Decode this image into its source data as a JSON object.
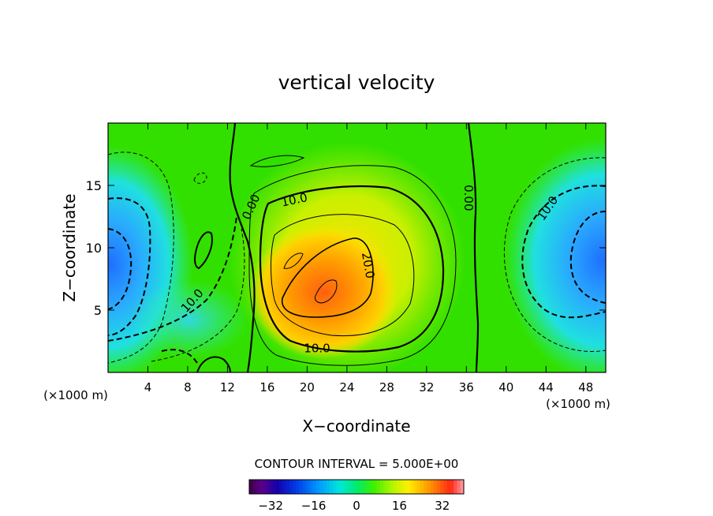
{
  "chart_data": {
    "type": "heatmap",
    "title": "vertical velocity",
    "xlabel": "X−coordinate",
    "ylabel": "Z−coordinate",
    "x_unit_label": "(×1000 m)",
    "y_unit_label": "(×1000 m)",
    "xlim": [
      0,
      50
    ],
    "ylim": [
      0,
      20
    ],
    "x_ticks": [
      4,
      8,
      12,
      16,
      20,
      24,
      28,
      32,
      36,
      40,
      44,
      48
    ],
    "x_tick_labels": [
      "4",
      "8",
      "12",
      "16",
      "20",
      "24",
      "28",
      "32",
      "36",
      "40",
      "44",
      "48"
    ],
    "y_ticks": [
      5,
      10,
      15
    ],
    "y_tick_labels": [
      "5",
      "10",
      "15"
    ],
    "contour_interval_text": "CONTOUR INTERVAL = 5.000E+00",
    "colorbar_range": [
      -40,
      40
    ],
    "colorbar_ticks": [
      -32,
      -16,
      0,
      16,
      32
    ],
    "colorbar_tick_labels": [
      "−32",
      "−16",
      "0",
      "16",
      "32"
    ],
    "contour_labels": [
      {
        "text": "0.00",
        "x": 14.3,
        "z": 13.3,
        "rotate": -65
      },
      {
        "text": "10.0",
        "x": 18.7,
        "z": 13.9,
        "rotate": -12
      },
      {
        "text": "20.0",
        "x": 26.2,
        "z": 8.6,
        "rotate": 80
      },
      {
        "text": "10.0",
        "x": 21.0,
        "z": 2.0,
        "rotate": 0
      },
      {
        "text": "0.00",
        "x": 36.3,
        "z": 14.0,
        "rotate": 90
      },
      {
        "text": "10.0",
        "x": 44.1,
        "z": 13.2,
        "rotate": -55
      },
      {
        "text": "10.0",
        "x": 8.4,
        "z": 5.8,
        "rotate": -48
      }
    ]
  }
}
